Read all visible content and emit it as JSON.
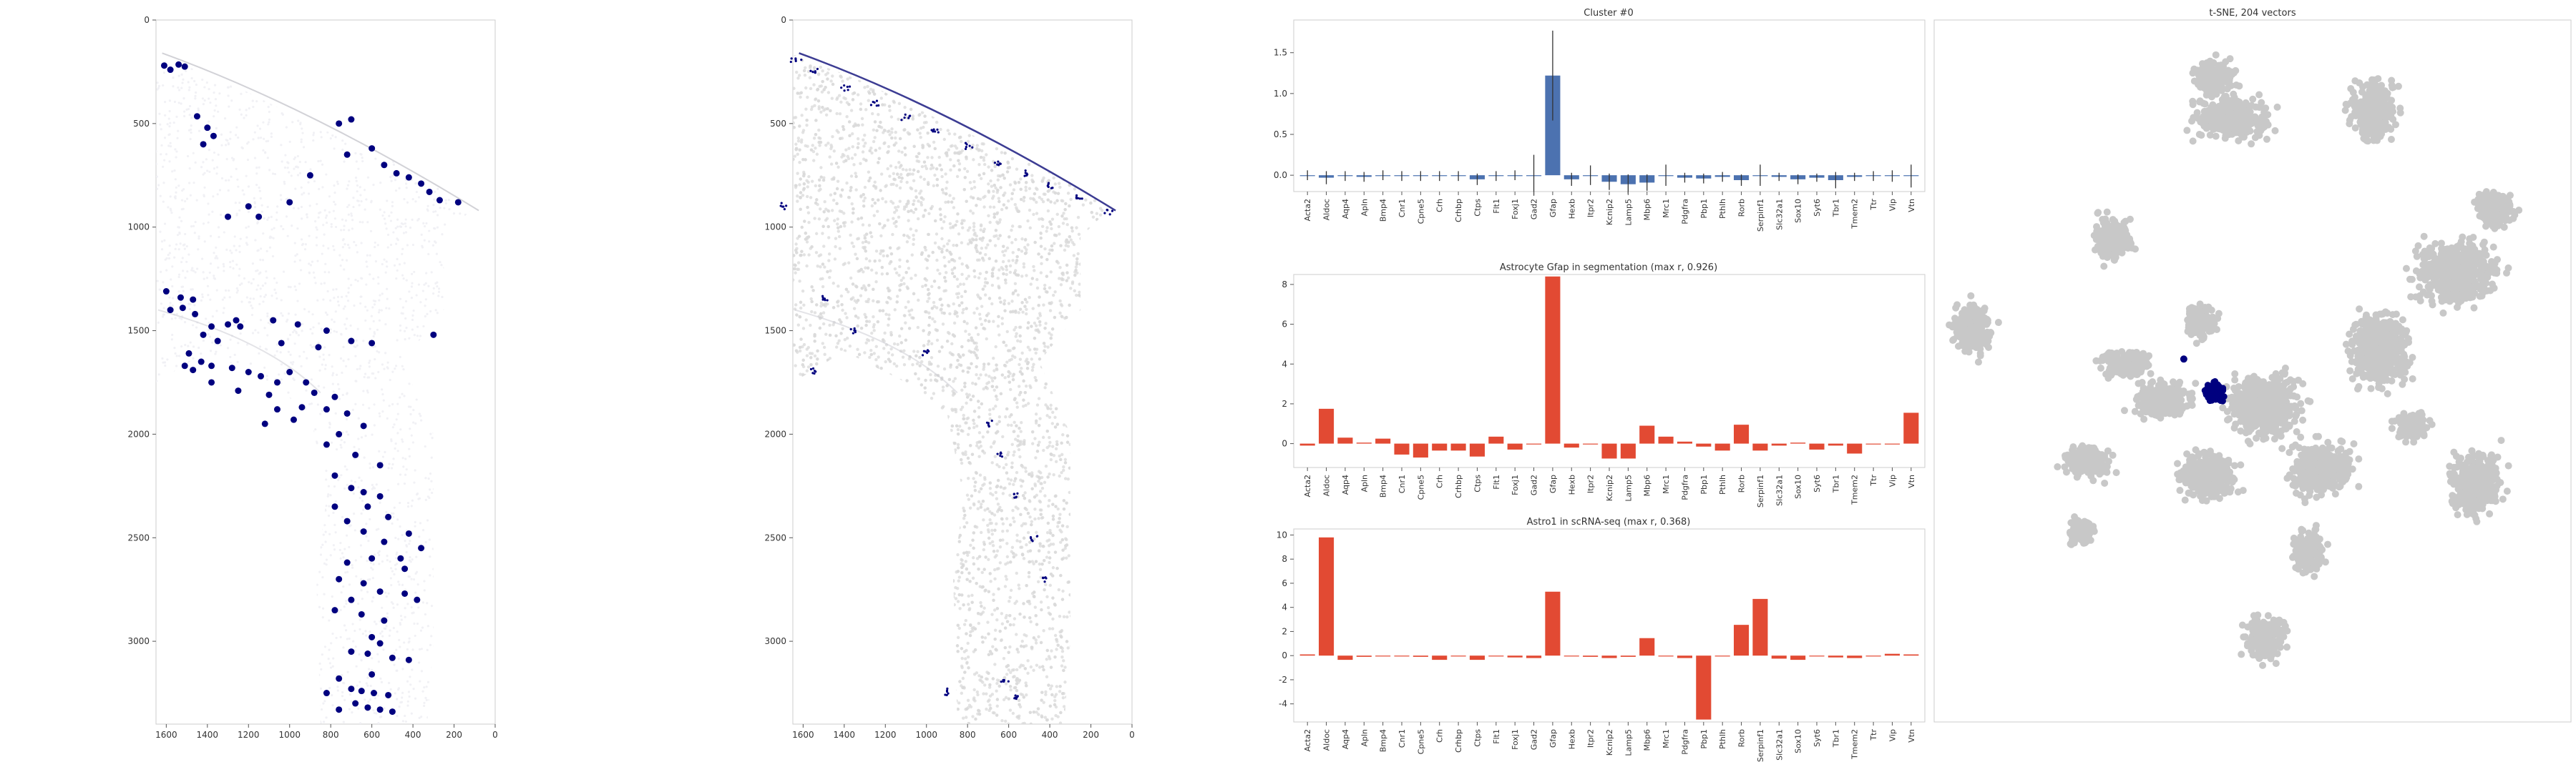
{
  "chart_data": [
    {
      "type": "scatter",
      "panel": "spatial-map-1",
      "title": "",
      "x_ticks": [
        1600,
        1400,
        1200,
        1000,
        800,
        600,
        400,
        200,
        0
      ],
      "y_ticks": [
        0,
        500,
        1000,
        1500,
        2000,
        2500,
        3000
      ],
      "xlim": [
        1650,
        0
      ],
      "ylim": [
        3400,
        0
      ],
      "x_inverted": true,
      "y_inverted": true,
      "highlight_color": "#00007f",
      "background_color": "#d9d9d9",
      "highlight_points": [
        [
          1610,
          220
        ],
        [
          1540,
          215
        ],
        [
          1510,
          225
        ],
        [
          1580,
          240
        ],
        [
          1450,
          465
        ],
        [
          1400,
          520
        ],
        [
          1370,
          560
        ],
        [
          1420,
          600
        ],
        [
          1600,
          1310
        ],
        [
          1530,
          1340
        ],
        [
          1470,
          1350
        ],
        [
          1520,
          1390
        ],
        [
          1580,
          1400
        ],
        [
          1460,
          1420
        ],
        [
          1260,
          1450
        ],
        [
          1240,
          1480
        ],
        [
          1380,
          1480
        ],
        [
          1300,
          1470
        ],
        [
          1420,
          1520
        ],
        [
          1350,
          1550
        ],
        [
          1490,
          1610
        ],
        [
          1430,
          1650
        ],
        [
          1380,
          1670
        ],
        [
          1470,
          1690
        ],
        [
          1510,
          1670
        ],
        [
          1280,
          1680
        ],
        [
          1200,
          1700
        ],
        [
          1140,
          1720
        ],
        [
          1060,
          1750
        ],
        [
          1000,
          1700
        ],
        [
          920,
          1750
        ],
        [
          880,
          1800
        ],
        [
          940,
          1870
        ],
        [
          1100,
          1810
        ],
        [
          1250,
          1790
        ],
        [
          1380,
          1750
        ],
        [
          1060,
          1880
        ],
        [
          980,
          1930
        ],
        [
          1120,
          1950
        ],
        [
          780,
          1820
        ],
        [
          820,
          1880
        ],
        [
          720,
          1900
        ],
        [
          640,
          1960
        ],
        [
          760,
          2000
        ],
        [
          820,
          2050
        ],
        [
          680,
          2100
        ],
        [
          560,
          2150
        ],
        [
          780,
          2200
        ],
        [
          700,
          2260
        ],
        [
          640,
          2280
        ],
        [
          560,
          2300
        ],
        [
          620,
          2350
        ],
        [
          520,
          2400
        ],
        [
          720,
          2420
        ],
        [
          640,
          2470
        ],
        [
          540,
          2520
        ],
        [
          420,
          2480
        ],
        [
          360,
          2550
        ],
        [
          460,
          2600
        ],
        [
          600,
          2600
        ],
        [
          720,
          2620
        ],
        [
          760,
          2700
        ],
        [
          640,
          2720
        ],
        [
          560,
          2760
        ],
        [
          440,
          2770
        ],
        [
          380,
          2800
        ],
        [
          700,
          2800
        ],
        [
          780,
          2850
        ],
        [
          650,
          2870
        ],
        [
          540,
          2900
        ],
        [
          600,
          2980
        ],
        [
          560,
          3010
        ],
        [
          700,
          3050
        ],
        [
          620,
          3060
        ],
        [
          500,
          3080
        ],
        [
          420,
          3090
        ],
        [
          760,
          3180
        ],
        [
          700,
          3230
        ],
        [
          650,
          3240
        ],
        [
          590,
          3250
        ],
        [
          520,
          3260
        ],
        [
          680,
          3300
        ],
        [
          620,
          3320
        ],
        [
          560,
          3330
        ],
        [
          500,
          3340
        ],
        [
          760,
          3330
        ],
        [
          820,
          3250
        ],
        [
          780,
          2350
        ],
        [
          440,
          2650
        ],
        [
          600,
          3160
        ],
        [
          900,
          750
        ],
        [
          720,
          650
        ],
        [
          760,
          500
        ],
        [
          700,
          480
        ],
        [
          600,
          620
        ],
        [
          540,
          700
        ],
        [
          480,
          740
        ],
        [
          420,
          760
        ],
        [
          360,
          790
        ],
        [
          320,
          830
        ],
        [
          270,
          870
        ],
        [
          180,
          880
        ],
        [
          1000,
          880
        ],
        [
          1150,
          950
        ],
        [
          1200,
          900
        ],
        [
          1300,
          950
        ],
        [
          1080,
          1450
        ],
        [
          960,
          1470
        ],
        [
          820,
          1500
        ],
        [
          860,
          1580
        ],
        [
          1040,
          1560
        ],
        [
          700,
          1550
        ],
        [
          600,
          1560
        ],
        [
          300,
          1520
        ]
      ]
    },
    {
      "type": "scatter",
      "panel": "spatial-map-2",
      "title": "",
      "x_ticks": [
        1600,
        1400,
        1200,
        1000,
        800,
        600,
        400,
        200,
        0
      ],
      "y_ticks": [
        0,
        500,
        1000,
        1500,
        2000,
        2500,
        3000
      ],
      "xlim": [
        1650,
        0
      ],
      "ylim": [
        3400,
        0
      ],
      "x_inverted": true,
      "y_inverted": true,
      "highlight_color": "#00007f",
      "background_color": "#d9d9d9"
    },
    {
      "type": "bar",
      "panel": "cluster-bars",
      "title": "Cluster #0",
      "y_ticks": [
        0.0,
        0.5,
        1.0,
        1.5
      ],
      "ylim": [
        -0.2,
        1.9
      ],
      "color": "#4c72b0",
      "categories": [
        "Acta2",
        "Aldoc",
        "Aqp4",
        "Apln",
        "Bmp4",
        "Cnr1",
        "Cpne5",
        "Crh",
        "Crhbp",
        "Ctps",
        "Flt1",
        "Foxj1",
        "Gad2",
        "Gfap",
        "Hexb",
        "Itpr2",
        "Kcnip2",
        "Lamp5",
        "Mbp6",
        "Mrc1",
        "Pdgfra",
        "Pbp1",
        "Pthlh",
        "Rorb",
        "Serpinf1",
        "Slc32a1",
        "Sox10",
        "Syt6",
        "Tbr1",
        "Tmem2",
        "Ttr",
        "Vip",
        "Vtn"
      ],
      "values": [
        0.0,
        -0.03,
        -0.01,
        -0.02,
        0.0,
        -0.01,
        -0.01,
        -0.01,
        -0.01,
        -0.05,
        -0.01,
        0.0,
        0.0,
        1.22,
        -0.05,
        0.0,
        -0.08,
        -0.11,
        -0.09,
        0.0,
        -0.03,
        -0.04,
        -0.02,
        -0.06,
        0.0,
        -0.02,
        -0.05,
        -0.03,
        -0.06,
        -0.02,
        -0.01,
        -0.01,
        -0.01
      ],
      "errors": [
        0.06,
        0.08,
        0.06,
        0.06,
        0.06,
        0.06,
        0.06,
        0.06,
        0.06,
        0.07,
        0.06,
        0.06,
        0.25,
        0.55,
        0.08,
        0.12,
        0.1,
        0.12,
        0.1,
        0.13,
        0.06,
        0.06,
        0.06,
        0.07,
        0.13,
        0.05,
        0.06,
        0.05,
        0.1,
        0.05,
        0.06,
        0.07,
        0.14
      ]
    },
    {
      "type": "bar",
      "panel": "astrocyte-bars",
      "title": "Astrocyte Gfap in segmentation (max r, 0.926)",
      "y_ticks": [
        0,
        2,
        4,
        6,
        8
      ],
      "ylim": [
        -1.2,
        8.5
      ],
      "color": "#e24a33",
      "categories": [
        "Acta2",
        "Aldoc",
        "Aqp4",
        "Apln",
        "Bmp4",
        "Cnr1",
        "Cpne5",
        "Crh",
        "Crhbp",
        "Ctps",
        "Flt1",
        "Foxj1",
        "Gad2",
        "Gfap",
        "Hexb",
        "Itpr2",
        "Kcnip2",
        "Lamp5",
        "Mbp6",
        "Mrc1",
        "Pdgfra",
        "Pbp1",
        "Pthlh",
        "Rorb",
        "Serpinf1",
        "Slc32a1",
        "Sox10",
        "Syt6",
        "Tbr1",
        "Tmem2",
        "Ttr",
        "Vip",
        "Vtn"
      ],
      "values": [
        -0.1,
        1.75,
        0.3,
        0.05,
        0.25,
        -0.55,
        -0.7,
        -0.35,
        -0.35,
        -0.65,
        0.35,
        -0.3,
        0.0,
        8.4,
        -0.2,
        0.0,
        -0.75,
        -0.75,
        0.9,
        0.35,
        0.1,
        -0.15,
        -0.35,
        0.95,
        -0.35,
        -0.1,
        0.05,
        -0.3,
        -0.1,
        -0.5,
        0.0,
        0.0,
        1.55
      ]
    },
    {
      "type": "bar",
      "panel": "astro1-bars",
      "title": "Astro1 in scRNA-seq (max r, 0.368)",
      "y_ticks": [
        -4,
        -2,
        0,
        2,
        4,
        6,
        8,
        10
      ],
      "ylim": [
        -5.5,
        10.5
      ],
      "color": "#e24a33",
      "categories": [
        "Acta2",
        "Aldoc",
        "Aqp4",
        "Apln",
        "Bmp4",
        "Cnr1",
        "Cpne5",
        "Crh",
        "Crhbp",
        "Ctps",
        "Flt1",
        "Foxj1",
        "Gad2",
        "Gfap",
        "Hexb",
        "Itpr2",
        "Kcnip2",
        "Lamp5",
        "Mbp6",
        "Mrc1",
        "Pdgfra",
        "Pbp1",
        "Pthlh",
        "Rorb",
        "Serpinf1",
        "Slc32a1",
        "Sox10",
        "Syt6",
        "Tbr1",
        "Tmem2",
        "Ttr",
        "Vip",
        "Vtn"
      ],
      "values": [
        0.1,
        9.8,
        -0.35,
        -0.1,
        0.0,
        0.0,
        -0.1,
        -0.35,
        0.0,
        -0.35,
        0.0,
        -0.15,
        -0.2,
        5.3,
        0.0,
        -0.1,
        -0.2,
        -0.1,
        1.45,
        0.0,
        -0.2,
        -5.3,
        0.0,
        2.55,
        4.7,
        -0.25,
        -0.35,
        0.0,
        -0.15,
        -0.2,
        0.0,
        0.15,
        0.1
      ]
    },
    {
      "type": "scatter",
      "panel": "tsne",
      "title": "t-SNE, 204 vectors",
      "highlight_color": "#00007f",
      "background_color": "#c8c8c8"
    }
  ]
}
